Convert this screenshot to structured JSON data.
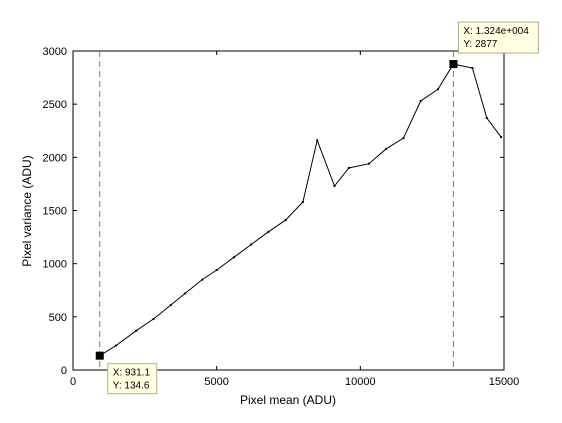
{
  "chart_data": {
    "type": "line",
    "title": "",
    "xlabel": "Pixel mean (ADU)",
    "ylabel": "Pixel variance (ADU)",
    "xlim": [
      0,
      15000
    ],
    "ylim": [
      0,
      3000
    ],
    "x_ticks": [
      0,
      5000,
      10000,
      15000
    ],
    "y_ticks": [
      0,
      500,
      1000,
      1500,
      2000,
      2500,
      3000
    ],
    "x_tick_labels": [
      "0",
      "5000",
      "10000",
      "15000"
    ],
    "y_tick_labels": [
      "0",
      "500",
      "1000",
      "1500",
      "2000",
      "2500",
      "3000"
    ],
    "grid": false,
    "line_color": "#000000",
    "series": [
      {
        "x": [
          931.1,
          1500,
          2200,
          2800,
          3400,
          3900,
          4500,
          5000,
          5600,
          6200,
          6800,
          7400,
          8000,
          8500,
          9100,
          9600,
          10300,
          10900,
          11500,
          12100,
          12700,
          13240,
          13900,
          14400,
          14900
        ],
        "values": [
          134.6,
          230,
          370,
          480,
          610,
          720,
          850,
          940,
          1060,
          1180,
          1300,
          1410,
          1580,
          2160,
          1730,
          1900,
          1940,
          2080,
          2180,
          2530,
          2640,
          2877,
          2840,
          2370,
          2190
        ]
      }
    ],
    "vertical_markers": [
      931.1,
      13240
    ],
    "datatips": [
      {
        "x_text": "X: 931.1",
        "y_text": "Y: 134.6",
        "x": 931.1,
        "y": 134.6
      },
      {
        "x_text": "X: 1.324e+004",
        "y_text": "Y: 2877",
        "x": 13240,
        "y": 2877
      }
    ]
  }
}
